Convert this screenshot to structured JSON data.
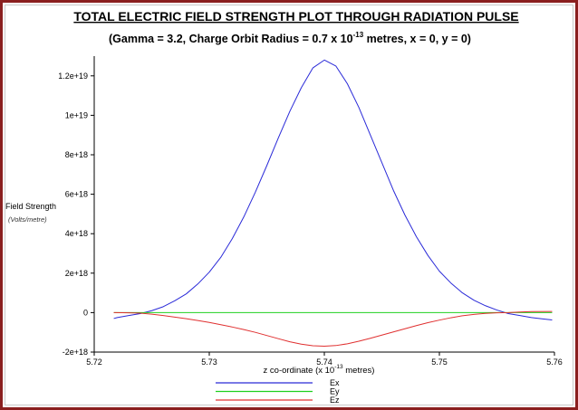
{
  "chart_data": {
    "type": "line",
    "title": "TOTAL ELECTRIC FIELD STRENGTH PLOT THROUGH RADIATION PULSE",
    "subtitle_parts": {
      "before_sup": "(Gamma = 3.2, Charge Orbit Radius = 0.7 x 10",
      "sup": "-13",
      "after_sup": " metres, x = 0, y = 0)"
    },
    "xlabel_parts": {
      "before_sup": "z co-ordinate (x 10",
      "sup": "-13",
      "after_sup": " metres)"
    },
    "ylabel": "Field Strength",
    "ylabel_unit": "(Volts/metre)",
    "xlim": [
      5.72,
      5.76
    ],
    "ylim": [
      -2e+18,
      1.3e+19
    ],
    "x_ticks": [
      5.72,
      5.73,
      5.74,
      5.75,
      5.76
    ],
    "x_tick_labels": [
      "5.72",
      "5.73",
      "5.74",
      "5.75",
      "5.76"
    ],
    "y_ticks": [
      -2e+18,
      0,
      2e+18,
      4e+18,
      6e+18,
      8e+18,
      1e+19,
      1.2e+19
    ],
    "y_tick_labels": [
      "-2e+18",
      "0",
      "2e+18",
      "4e+18",
      "6e+18",
      "8e+18",
      "1e+19",
      "1.2e+19"
    ],
    "legend_position": "bottom-center",
    "series": [
      {
        "name": "Ex",
        "color": "#2a2ad8",
        "x": [
          5.7217,
          5.722,
          5.723,
          5.724,
          5.725,
          5.726,
          5.727,
          5.728,
          5.729,
          5.73,
          5.731,
          5.732,
          5.733,
          5.734,
          5.735,
          5.736,
          5.737,
          5.738,
          5.739,
          5.74,
          5.741,
          5.742,
          5.743,
          5.744,
          5.745,
          5.746,
          5.747,
          5.748,
          5.749,
          5.75,
          5.751,
          5.752,
          5.753,
          5.754,
          5.755,
          5.756,
          5.757,
          5.758,
          5.759,
          5.7598
        ],
        "y": [
          -3e+17,
          -2.5e+17,
          -1.5e+17,
          -5e+16,
          1e+17,
          3e+17,
          6e+17,
          9.5e+17,
          1.45e+18,
          2.05e+18,
          2.8e+18,
          3.75e+18,
          4.85e+18,
          6.1e+18,
          7.45e+18,
          8.85e+18,
          1.02e+19,
          1.14e+19,
          1.24e+19,
          1.28e+19,
          1.25e+19,
          1.16e+19,
          1.04e+19,
          9e+18,
          7.6e+18,
          6.2e+18,
          4.95e+18,
          3.85e+18,
          2.9e+18,
          2.1e+18,
          1.5e+18,
          1e+18,
          6.3e+17,
          3.5e+17,
          1.3e+17,
          -5e+16,
          -1.5e+17,
          -2.5e+17,
          -3.2e+17,
          -3.7e+17
        ]
      },
      {
        "name": "Ey",
        "color": "#1fd01f",
        "x": [
          5.7217,
          5.7598
        ],
        "y": [
          0,
          0
        ]
      },
      {
        "name": "Ez",
        "color": "#e03030",
        "x": [
          5.7217,
          5.723,
          5.724,
          5.725,
          5.726,
          5.727,
          5.728,
          5.729,
          5.73,
          5.731,
          5.732,
          5.733,
          5.734,
          5.735,
          5.736,
          5.737,
          5.738,
          5.739,
          5.74,
          5.741,
          5.742,
          5.743,
          5.744,
          5.745,
          5.746,
          5.747,
          5.748,
          5.749,
          5.75,
          5.751,
          5.752,
          5.753,
          5.754,
          5.755,
          5.756,
          5.757,
          5.758,
          5.7598
        ],
        "y": [
          0,
          -1e+16,
          -3e+16,
          -8e+16,
          -1.5e+17,
          -2.3e+17,
          -3.1e+17,
          -4e+17,
          -5e+17,
          -6.1e+17,
          -7.3e+17,
          -8.6e+17,
          -1e+18,
          -1.16e+18,
          -1.32e+18,
          -1.48e+18,
          -1.6e+18,
          -1.68e+18,
          -1.7e+18,
          -1.67e+18,
          -1.58e+18,
          -1.45e+18,
          -1.3e+18,
          -1.14e+18,
          -9.8e+17,
          -8.2e+17,
          -6.6e+17,
          -5.1e+17,
          -3.8e+17,
          -2.6e+17,
          -1.6e+17,
          -9e+16,
          -4e+16,
          -1e+16,
          0,
          3e+16,
          5e+16,
          6e+16
        ]
      }
    ]
  }
}
